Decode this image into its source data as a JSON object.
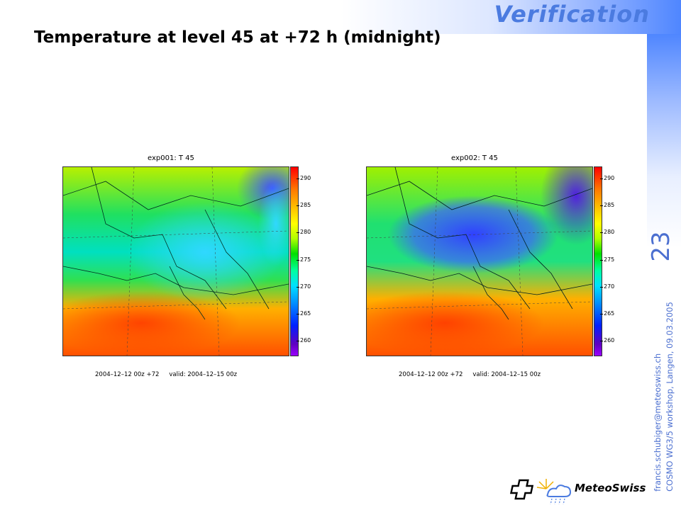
{
  "header": {
    "section_title": "Verification",
    "slide_title": "Temperature at level 45 at +72 h (midnight)"
  },
  "sidebar": {
    "slide_number": "23",
    "footer_line1": "francis.schubiger@meteoswiss.ch",
    "footer_line2": "COSMO WG3/5 workshop, Langen, 09.03.2005"
  },
  "panels": [
    {
      "title": "exp001: T 45",
      "init": "2004–12–12 00z +72",
      "valid": "valid: 2004–12–15 00z",
      "colorbar_ticks": [
        "290",
        "285",
        "280",
        "275",
        "270",
        "265",
        "260"
      ]
    },
    {
      "title": "exp002: T 45",
      "init": "2004–12–12 00z +72",
      "valid": "valid: 2004–12–15 00z",
      "colorbar_ticks": [
        "290",
        "285",
        "280",
        "275",
        "270",
        "265",
        "260"
      ]
    }
  ],
  "logo": {
    "text": "MeteoSwiss"
  },
  "colors": {
    "accent": "#4b7be0",
    "band": "#4f86ff"
  }
}
